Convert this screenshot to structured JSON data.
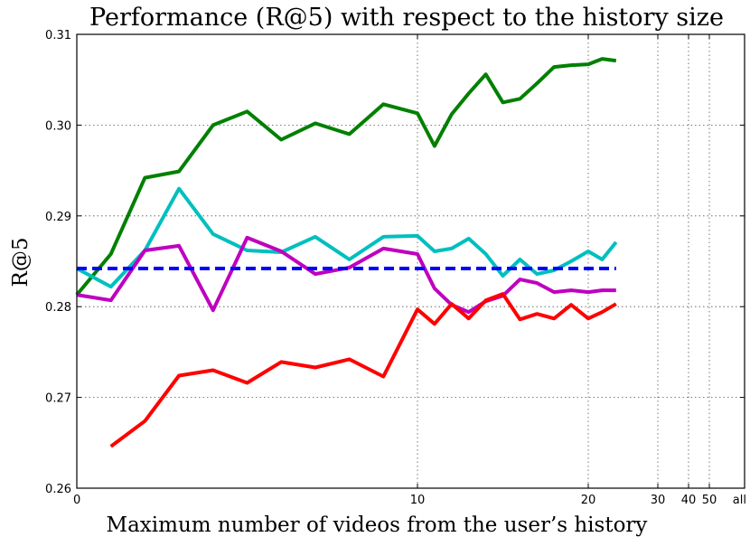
{
  "chart_data": {
    "type": "line",
    "title": "Performance (R@5) with respect to the history size",
    "xlabel": "Maximum number of videos from the user’s history",
    "ylabel": "R@5",
    "x_ticks": [
      {
        "label": "0",
        "value": 0
      },
      {
        "label": "10",
        "value": 10
      },
      {
        "label": "20",
        "value": 20
      },
      {
        "label": "30",
        "value": 30
      },
      {
        "label": "40",
        "value": 40
      },
      {
        "label": "50",
        "value": 50
      },
      {
        "label": "all",
        "value": 60
      }
    ],
    "x_axis_scale": "piecewise (compressed beyond 20)",
    "y_ticks": [
      "0.26",
      "0.27",
      "0.28",
      "0.29",
      "0.30",
      "0.31"
    ],
    "ylim": [
      0.26,
      0.31
    ],
    "grid": true,
    "x": [
      0,
      1,
      2,
      3,
      4,
      5,
      6,
      7,
      8,
      9,
      10,
      11,
      12,
      13,
      14,
      15,
      16,
      17,
      18,
      19,
      20,
      22,
      24,
      26,
      28,
      30,
      32,
      34,
      36,
      38,
      40,
      45,
      50,
      55,
      60
    ],
    "series": [
      {
        "color": "#008000",
        "style": "solid",
        "values": [
          0.2813,
          0.2858,
          0.2942,
          0.2949,
          0.3,
          0.3015,
          0.2984,
          0.3002,
          0.299,
          0.3023,
          0.3013,
          0.2977,
          0.3012,
          0.3035,
          0.3056,
          0.3025,
          0.3029,
          0.3046,
          0.3064,
          0.3066,
          0.3067,
          0.3073,
          0.3071,
          null,
          null,
          null,
          null,
          null,
          null,
          null,
          null,
          null,
          null,
          null,
          null
        ]
      },
      {
        "color": "#00bfbf",
        "style": "solid",
        "values": [
          0.2842,
          0.2822,
          0.2862,
          0.293,
          0.288,
          0.2862,
          0.286,
          0.2877,
          0.2852,
          0.2877,
          0.2878,
          0.2861,
          0.2864,
          0.2875,
          0.2858,
          0.2834,
          0.2852,
          0.2836,
          0.284,
          0.285,
          0.2861,
          0.2852,
          0.2871,
          null,
          null,
          null,
          null,
          null,
          null,
          null,
          null,
          null,
          null,
          null,
          null
        ]
      },
      {
        "color": "#bf00bf",
        "style": "solid",
        "values": [
          0.2813,
          0.2807,
          0.2862,
          0.2867,
          0.2796,
          0.2876,
          0.2861,
          0.2836,
          0.2843,
          0.2864,
          0.2858,
          0.282,
          0.2802,
          0.2794,
          0.2806,
          0.2812,
          0.283,
          0.2826,
          0.2816,
          0.2818,
          0.2816,
          0.2818,
          0.2818,
          null,
          null,
          null,
          null,
          null,
          null,
          null,
          null,
          null,
          null,
          null,
          null
        ]
      },
      {
        "color": "#ff0000",
        "style": "solid",
        "values": [
          null,
          0.2646,
          0.2674,
          0.2724,
          0.273,
          0.2716,
          0.2739,
          0.2733,
          0.2742,
          0.2723,
          0.2797,
          0.2781,
          0.2803,
          0.2787,
          0.2807,
          0.2814,
          0.2786,
          0.2792,
          0.2787,
          0.2802,
          0.2787,
          0.2794,
          0.2803,
          null,
          null,
          null,
          null,
          null,
          null,
          null,
          null,
          null,
          null,
          null,
          null
        ]
      },
      {
        "color": "#0000ff",
        "style": "dashed",
        "values": [
          0.2842,
          0.2842,
          0.2842,
          0.2842,
          0.2842,
          0.2842,
          0.2842,
          0.2842,
          0.2842,
          0.2842,
          0.2842,
          0.2842,
          0.2842,
          0.2842,
          0.2842,
          0.2842,
          0.2842,
          0.2842,
          0.2842,
          0.2842,
          0.2842,
          0.2842,
          0.2842,
          null,
          null,
          null,
          null,
          null,
          null,
          null,
          null,
          null,
          null,
          null,
          null
        ]
      }
    ]
  }
}
